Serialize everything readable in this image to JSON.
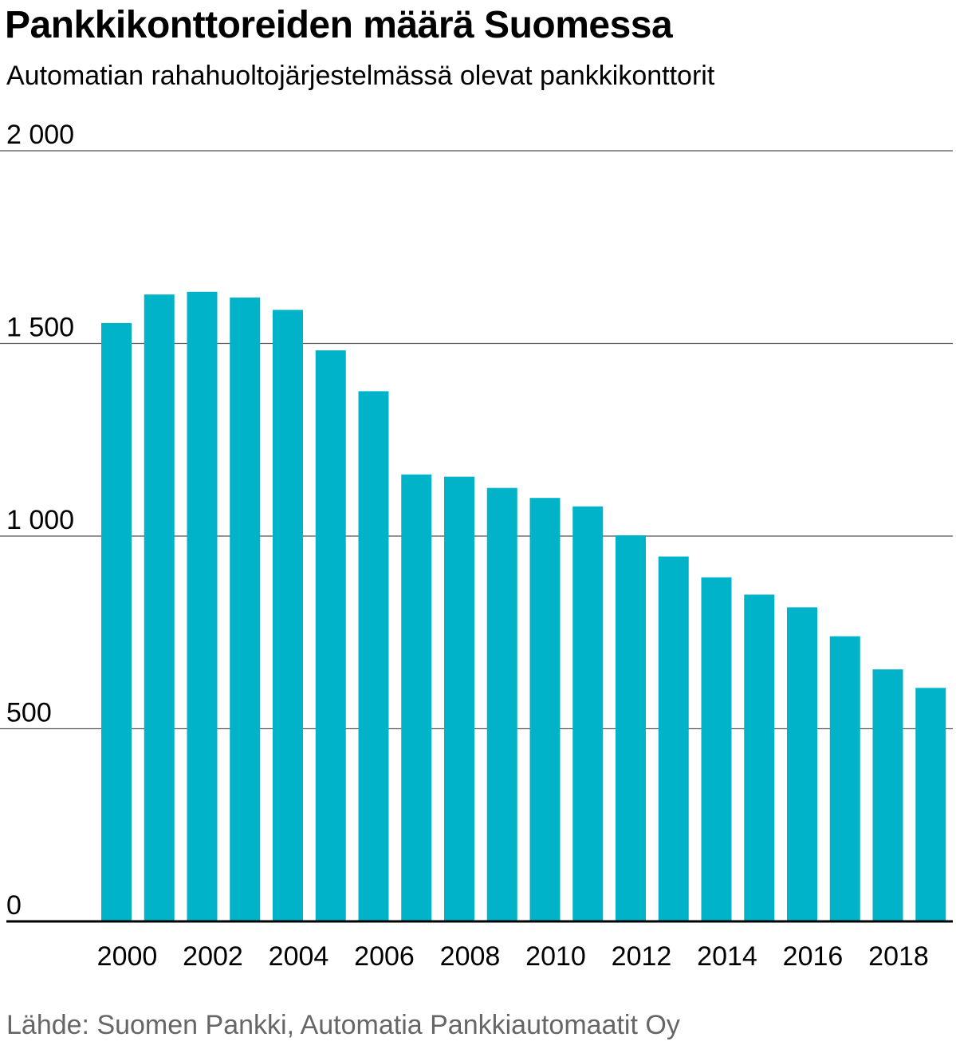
{
  "title": "Pankkikonttoreiden määrä Suomessa",
  "subtitle": "Automatian rahahuoltojärjestelmässä olevat pankkikonttorit",
  "source": "Lähde: Suomen Pankki, Automatia Pankkiautomaatit Oy",
  "colors": {
    "bar": "#00b3c9",
    "gridline": "#555555",
    "baseline": "#000000",
    "text": "#000000",
    "source_text": "#666666"
  },
  "chart_data": {
    "type": "bar",
    "title": "Pankkikonttoreiden määrä Suomessa",
    "subtitle": "Automatian rahahuoltojärjestelmässä olevat pankkikonttorit",
    "categories": [
      2000,
      2001,
      2002,
      2003,
      2004,
      2005,
      2006,
      2007,
      2008,
      2009,
      2010,
      2011,
      2012,
      2013,
      2014,
      2015,
      2016,
      2017,
      2018,
      2019
    ],
    "values": [
      1553,
      1627,
      1634,
      1619,
      1587,
      1482,
      1376,
      1160,
      1154,
      1125,
      1099,
      1077,
      1002,
      947,
      893,
      848,
      815,
      740,
      654,
      606
    ],
    "x_tick_labels": [
      "2000",
      "2002",
      "2004",
      "2006",
      "2008",
      "2010",
      "2012",
      "2014",
      "2016",
      "2018"
    ],
    "y_ticks": [
      0,
      500,
      1000,
      1500,
      2000
    ],
    "y_tick_labels": [
      "0",
      "500",
      "1 000",
      "1 500",
      "2 000"
    ],
    "ylim": [
      0,
      2000
    ],
    "xlabel": "",
    "ylabel": "",
    "grid": true,
    "legend": "none",
    "source": "Lähde: Suomen Pankki, Automatia Pankkiautomaatit Oy"
  }
}
